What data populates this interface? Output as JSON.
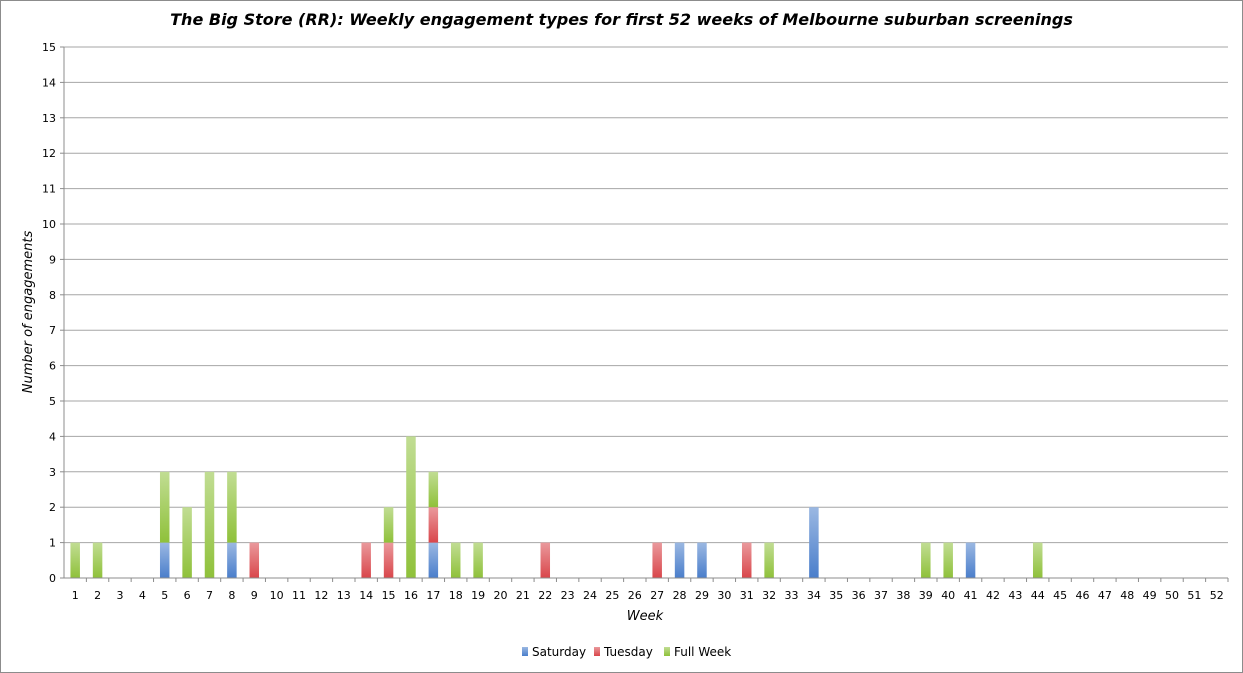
{
  "chart_data": {
    "type": "bar",
    "stacked": true,
    "title": "The Big Store (RR): Weekly engagement types for first 52 weeks of Melbourne suburban screenings",
    "xlabel": "Week",
    "ylabel": "Number of engagements",
    "ylim": [
      0,
      15
    ],
    "yticks": [
      0,
      1,
      2,
      3,
      4,
      5,
      6,
      7,
      8,
      9,
      10,
      11,
      12,
      13,
      14,
      15
    ],
    "grid": true,
    "legend_position": "bottom",
    "categories": [
      "1",
      "2",
      "3",
      "4",
      "5",
      "6",
      "7",
      "8",
      "9",
      "10",
      "11",
      "12",
      "13",
      "14",
      "15",
      "16",
      "17",
      "18",
      "19",
      "20",
      "21",
      "22",
      "23",
      "24",
      "25",
      "26",
      "27",
      "28",
      "29",
      "30",
      "31",
      "32",
      "33",
      "34",
      "35",
      "36",
      "37",
      "38",
      "39",
      "40",
      "41",
      "42",
      "43",
      "44",
      "45",
      "46",
      "47",
      "48",
      "49",
      "50",
      "51",
      "52"
    ],
    "series": [
      {
        "name": "Saturday",
        "color": "#4a7ecb",
        "values": [
          0,
          0,
          0,
          0,
          1,
          0,
          0,
          1,
          0,
          0,
          0,
          0,
          0,
          0,
          0,
          0,
          1,
          0,
          0,
          0,
          0,
          0,
          0,
          0,
          0,
          0,
          0,
          1,
          1,
          0,
          0,
          0,
          0,
          2,
          0,
          0,
          0,
          0,
          0,
          0,
          1,
          0,
          0,
          0,
          0,
          0,
          0,
          0,
          0,
          0,
          0,
          0
        ]
      },
      {
        "name": "Tuesday",
        "color": "#d9464b",
        "values": [
          0,
          0,
          0,
          0,
          0,
          0,
          0,
          0,
          1,
          0,
          0,
          0,
          0,
          1,
          1,
          0,
          1,
          0,
          0,
          0,
          0,
          1,
          0,
          0,
          0,
          0,
          1,
          0,
          0,
          0,
          1,
          0,
          0,
          0,
          0,
          0,
          0,
          0,
          0,
          0,
          0,
          0,
          0,
          0,
          0,
          0,
          0,
          0,
          0,
          0,
          0,
          0
        ]
      },
      {
        "name": "Full Week",
        "color": "#8fc13a",
        "values": [
          1,
          1,
          0,
          0,
          2,
          2,
          3,
          2,
          0,
          0,
          0,
          0,
          0,
          0,
          1,
          4,
          1,
          1,
          1,
          0,
          0,
          0,
          0,
          0,
          0,
          0,
          0,
          0,
          0,
          0,
          0,
          1,
          0,
          0,
          0,
          0,
          0,
          0,
          1,
          1,
          0,
          0,
          0,
          1,
          0,
          0,
          0,
          0,
          0,
          0,
          0,
          0
        ]
      }
    ]
  }
}
